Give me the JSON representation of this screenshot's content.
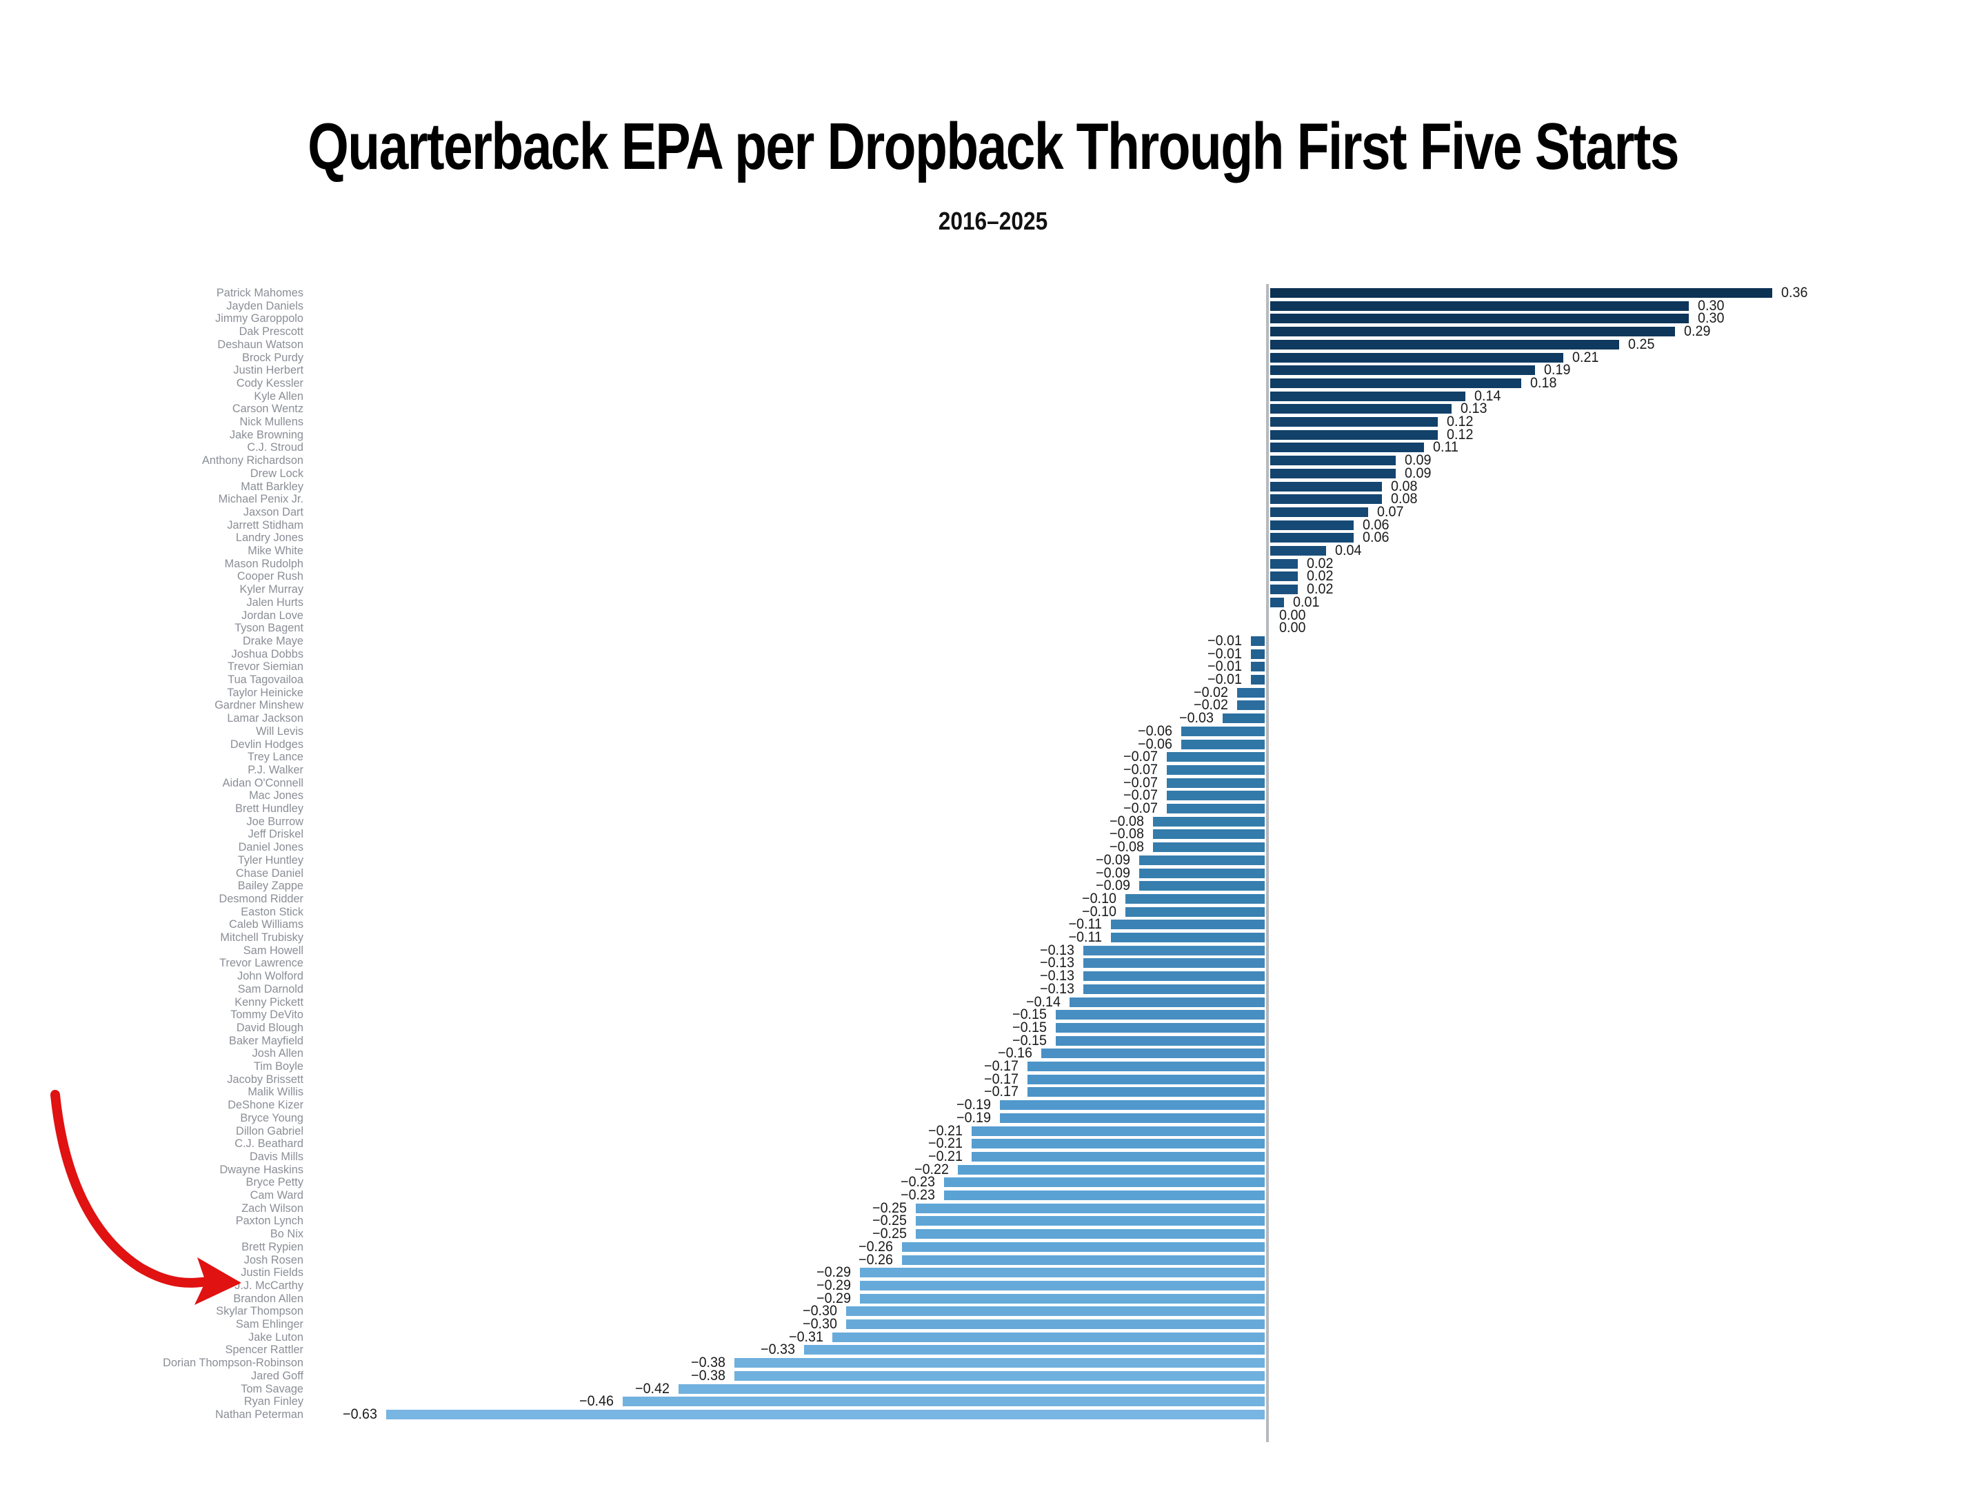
{
  "title": "Quarterback EPA per Dropback Through First Five Starts",
  "subtitle": "2016–2025",
  "annotation": {
    "type": "hand-drawn-arrow",
    "target": "J.J. McCarthy",
    "color": "#e01212"
  },
  "chart_data": {
    "type": "bar",
    "orientation": "horizontal",
    "title": "Quarterback EPA per Dropback Through First Five Starts",
    "subtitle": "2016–2025",
    "xlabel": "",
    "ylabel": "",
    "xlim": [
      -0.63,
      0.36
    ],
    "grid": false,
    "legend": false,
    "zero_line": true,
    "value_label_format": "two-decimals",
    "categories": [
      "Patrick Mahomes",
      "Jayden Daniels",
      "Jimmy Garoppolo",
      "Dak Prescott",
      "Deshaun Watson",
      "Brock Purdy",
      "Justin Herbert",
      "Cody Kessler",
      "Kyle Allen",
      "Carson Wentz",
      "Nick Mullens",
      "Jake Browning",
      "C.J. Stroud",
      "Anthony Richardson",
      "Drew Lock",
      "Matt Barkley",
      "Michael Penix Jr.",
      "Jaxson Dart",
      "Jarrett Stidham",
      "Landry Jones",
      "Mike White",
      "Mason Rudolph",
      "Cooper Rush",
      "Kyler Murray",
      "Jalen Hurts",
      "Jordan Love",
      "Tyson Bagent",
      "Drake Maye",
      "Joshua Dobbs",
      "Trevor Siemian",
      "Tua Tagovailoa",
      "Taylor Heinicke",
      "Gardner Minshew",
      "Lamar Jackson",
      "Will Levis",
      "Devlin Hodges",
      "Trey Lance",
      "P.J. Walker",
      "Aidan O'Connell",
      "Mac Jones",
      "Brett Hundley",
      "Joe Burrow",
      "Jeff Driskel",
      "Daniel Jones",
      "Tyler Huntley",
      "Chase Daniel",
      "Bailey Zappe",
      "Desmond Ridder",
      "Easton Stick",
      "Caleb Williams",
      "Mitchell Trubisky",
      "Sam Howell",
      "Trevor Lawrence",
      "John Wolford",
      "Sam Darnold",
      "Kenny Pickett",
      "Tommy DeVito",
      "David Blough",
      "Baker Mayfield",
      "Josh Allen",
      "Tim Boyle",
      "Jacoby Brissett",
      "Malik Willis",
      "DeShone Kizer",
      "Bryce Young",
      "Dillon Gabriel",
      "C.J. Beathard",
      "Davis Mills",
      "Dwayne Haskins",
      "Bryce Petty",
      "Cam Ward",
      "Zach Wilson",
      "Paxton Lynch",
      "Bo Nix",
      "Brett Rypien",
      "Josh Rosen",
      "Justin Fields",
      "J.J. McCarthy",
      "Brandon Allen",
      "Skylar Thompson",
      "Sam Ehlinger",
      "Jake Luton",
      "Spencer Rattler",
      "Dorian Thompson-Robinson",
      "Jared Goff",
      "Tom Savage",
      "Ryan Finley",
      "Nathan Peterman"
    ],
    "values": [
      0.36,
      0.3,
      0.3,
      0.29,
      0.25,
      0.21,
      0.19,
      0.18,
      0.14,
      0.13,
      0.12,
      0.12,
      0.11,
      0.09,
      0.09,
      0.08,
      0.08,
      0.07,
      0.06,
      0.06,
      0.04,
      0.02,
      0.02,
      0.02,
      0.01,
      0.0,
      0.0,
      -0.01,
      -0.01,
      -0.01,
      -0.01,
      -0.02,
      -0.02,
      -0.03,
      -0.06,
      -0.06,
      -0.07,
      -0.07,
      -0.07,
      -0.07,
      -0.07,
      -0.08,
      -0.08,
      -0.08,
      -0.09,
      -0.09,
      -0.09,
      -0.1,
      -0.1,
      -0.11,
      -0.11,
      -0.13,
      -0.13,
      -0.13,
      -0.13,
      -0.14,
      -0.15,
      -0.15,
      -0.15,
      -0.16,
      -0.17,
      -0.17,
      -0.17,
      -0.19,
      -0.19,
      -0.21,
      -0.21,
      -0.21,
      -0.22,
      -0.23,
      -0.23,
      -0.25,
      -0.25,
      -0.25,
      -0.26,
      -0.26,
      -0.29,
      -0.29,
      -0.29,
      -0.3,
      -0.3,
      -0.31,
      -0.33,
      -0.38,
      -0.38,
      -0.42,
      -0.46,
      -0.63
    ],
    "color_stops": [
      [
        0.36,
        "#0c3254"
      ],
      [
        0.1,
        "#12426c"
      ],
      [
        0.0,
        "#1c5584"
      ],
      [
        -0.02,
        "#2a6d9e"
      ],
      [
        -0.08,
        "#337cab"
      ],
      [
        -0.13,
        "#4288bb"
      ],
      [
        -0.17,
        "#4c93c8"
      ],
      [
        -0.22,
        "#58a0d2"
      ],
      [
        -0.28,
        "#65a9d9"
      ],
      [
        -0.38,
        "#6fb0de"
      ],
      [
        -0.63,
        "#79b5e2"
      ]
    ],
    "axis_line_color": "#b7babd",
    "name_label_color": "#8a8e96",
    "value_label_color": "#1b1b1b"
  }
}
